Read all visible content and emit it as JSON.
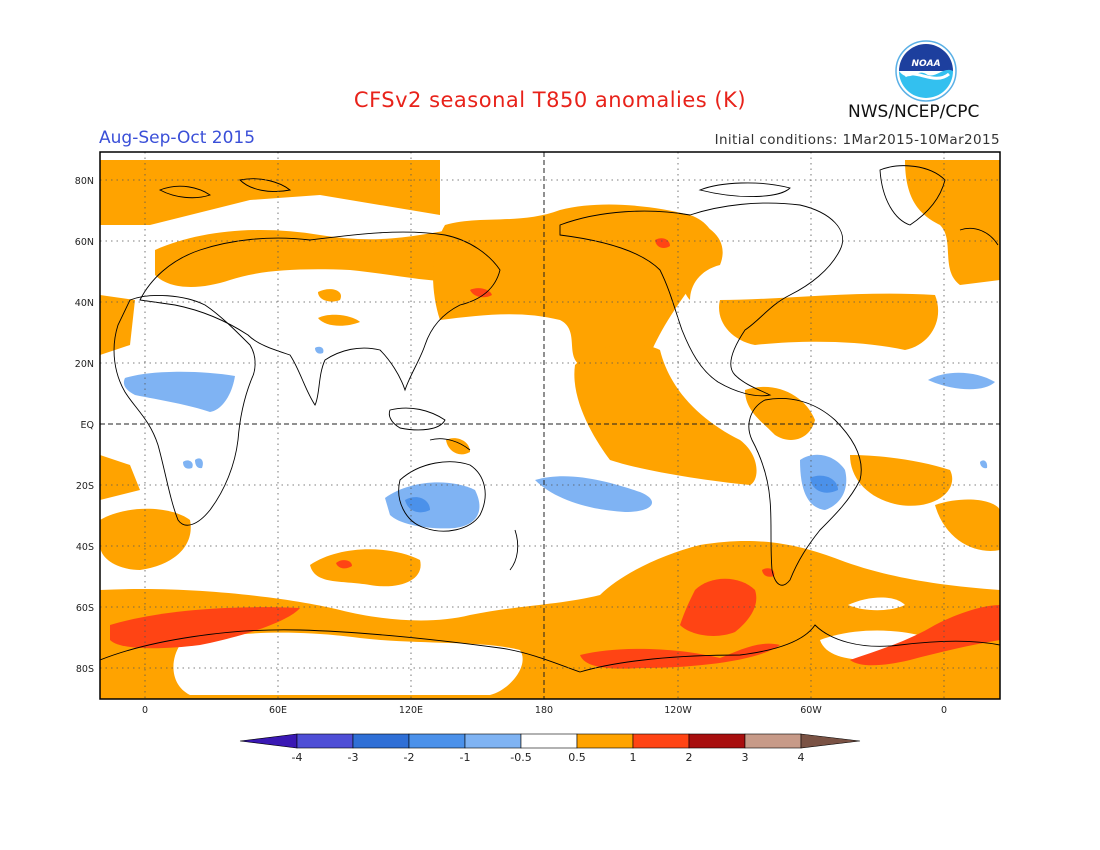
{
  "header": {
    "title": "CFSv2 seasonal T850 anomalies (K)",
    "season": "Aug-Sep-Oct 2015",
    "initial_conditions": "Initial conditions: 1Mar2015-10Mar2015",
    "agency": "NWS/NCEP/CPC",
    "logo_text": "NOAA"
  },
  "map": {
    "lat_labels": [
      "80N",
      "60N",
      "40N",
      "20N",
      "EQ",
      "20S",
      "40S",
      "60S",
      "80S"
    ],
    "lon_labels": [
      "0",
      "60E",
      "120E",
      "180",
      "120W",
      "60W",
      "0"
    ]
  },
  "colorbar": {
    "labels": [
      "-4",
      "-3",
      "-2",
      "-1",
      "-0.5",
      "0.5",
      "1",
      "2",
      "3",
      "4"
    ],
    "colors": [
      "#3a18b4",
      "#4e4ed6",
      "#2f6fd6",
      "#4b91ea",
      "#7fb3f3",
      "#ffffff",
      "#ffa300",
      "#ff4414",
      "#a80e0e",
      "#c79a88",
      "#7a5244"
    ]
  },
  "colors": {
    "warm1": "#ffa300",
    "warm2": "#ff4414",
    "cool1": "#7fb3f3",
    "cool2": "#4b91ea",
    "title": "#e8221a",
    "season": "#3a4fd8"
  }
}
